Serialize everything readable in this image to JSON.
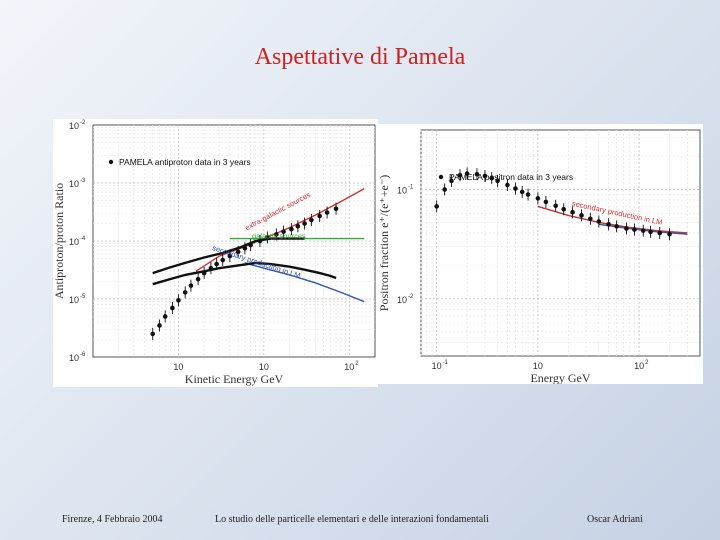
{
  "slide": {
    "title": "Aspettative di Pamela",
    "footer": {
      "left": "Firenze, 4 Febbraio 2004",
      "center": "Lo studio delle particelle elementari e delle interazioni fondamentali",
      "right": "Oscar Adriani"
    }
  },
  "colors": {
    "title": "#cc2222",
    "data": "#111111",
    "model_red": "#cc3333",
    "model_green": "#33aa33",
    "model_blue": "#3355aa"
  },
  "chart_data": [
    {
      "type": "scatter",
      "ylabel": "Antiproton/proton Ratio",
      "xlabel": "Kinetic Energy   GeV",
      "x_scale": "log",
      "y_scale": "log",
      "xlim": [
        0.1,
        200
      ],
      "ylim": [
        1e-06,
        0.01
      ],
      "x_ticks": [
        {
          "v": 1,
          "label": "10"
        },
        {
          "v": 10,
          "label": "10"
        },
        {
          "v": 100,
          "label": "10"
        }
      ],
      "x_tick_exps": [
        "",
        "",
        "2"
      ],
      "y_ticks": [
        {
          "v": 0.01,
          "label": "10",
          "exp": "-2"
        },
        {
          "v": 0.001,
          "label": "10",
          "exp": "-3"
        },
        {
          "v": 0.0001,
          "label": "10",
          "exp": "-4"
        },
        {
          "v": 1e-05,
          "label": "10",
          "exp": "-5"
        },
        {
          "v": 1e-06,
          "label": "10",
          "exp": "-6"
        }
      ],
      "legend": "PAMELA antiproton data in 3 years",
      "annotations": [
        {
          "text": "extra-galactic sources",
          "x": 15,
          "y": 0.0003,
          "color": "#cc3333",
          "rotate": -28
        },
        {
          "text": "galactic sources",
          "x": 15,
          "y": 0.00011,
          "color": "#33aa33",
          "rotate": 0
        },
        {
          "text": "secondary production in LM",
          "x": 8,
          "y": 4e-05,
          "color": "#3355aa",
          "rotate": 18
        }
      ],
      "models": [
        {
          "name": "extra-galactic sources",
          "color": "#cc3333",
          "x": [
            1.6,
            3,
            6,
            10,
            20,
            40,
            80,
            150
          ],
          "y": [
            3e-05,
            5.5e-05,
            8e-05,
            0.00011,
            0.00017,
            0.00028,
            0.00048,
            0.0008
          ]
        },
        {
          "name": "galactic sources",
          "color": "#33aa33",
          "x": [
            4,
            8,
            15,
            30,
            60,
            150
          ],
          "y": [
            0.00011,
            0.00011,
            0.00011,
            0.00011,
            0.00011,
            0.00011
          ]
        },
        {
          "name": "secondary production in LM",
          "color": "#3355aa",
          "x": [
            6,
            10,
            20,
            40,
            80,
            150
          ],
          "y": [
            4.2e-05,
            3.4e-05,
            2.6e-05,
            1.9e-05,
            1.3e-05,
            9e-06
          ]
        }
      ],
      "series": [
        {
          "name": "PAMELA antiproton data in 3 years",
          "kind": "scatter",
          "x": [
            0.5,
            0.6,
            0.7,
            0.85,
            1.0,
            1.2,
            1.4,
            1.7,
            2.0,
            2.4,
            2.8,
            3.3,
            4,
            5,
            6,
            7,
            9,
            11,
            14,
            17,
            21,
            25,
            30,
            36,
            45,
            55,
            70
          ],
          "y": [
            2.5e-06,
            3.5e-06,
            5e-06,
            7e-06,
            9.5e-06,
            1.3e-05,
            1.7e-05,
            2.2e-05,
            2.8e-05,
            3.4e-05,
            4e-05,
            4.7e-05,
            5.5e-05,
            6.5e-05,
            7.5e-05,
            8.5e-05,
            0.0001,
            0.000115,
            0.00013,
            0.000145,
            0.00016,
            0.00018,
            0.0002,
            0.00023,
            0.00027,
            0.00031,
            0.00036
          ]
        },
        {
          "name": "",
          "kind": "line",
          "x": [
            0.5,
            0.8,
            1.2,
            2,
            3,
            5,
            8,
            12,
            20,
            30
          ],
          "y": [
            2.8e-05,
            3.5e-05,
            4.2e-05,
            5.2e-05,
            6e-05,
            7.5e-05,
            0.0001,
            0.00011,
            0.00011,
            0.00011
          ]
        },
        {
          "name": "",
          "kind": "line",
          "x": [
            0.5,
            0.8,
            1.2,
            2,
            3,
            5,
            8,
            12,
            20,
            30,
            45,
            60,
            70
          ],
          "y": [
            1.8e-05,
            2.2e-05,
            2.6e-05,
            3e-05,
            3.4e-05,
            3.8e-05,
            4.2e-05,
            4e-05,
            3.6e-05,
            3.2e-05,
            2.8e-05,
            2.5e-05,
            2.3e-05
          ]
        }
      ]
    },
    {
      "type": "scatter",
      "ylabel": "Positron fraction  e⁺/(e⁺+e⁻)",
      "xlabel": "Energy   GeV",
      "x_scale": "log",
      "y_scale": "log",
      "xlim": [
        0.7,
        400
      ],
      "ylim": [
        0.003,
        0.35
      ],
      "x_ticks": [
        {
          "v": 1,
          "label": "10"
        },
        {
          "v": 10,
          "label": "10"
        },
        {
          "v": 100,
          "label": "10"
        }
      ],
      "x_tick_exps": [
        "-1",
        "",
        "2"
      ],
      "y_ticks": [
        {
          "v": 0.1,
          "label": "10",
          "exp": "-1"
        },
        {
          "v": 0.01,
          "label": "10",
          "exp": "-2"
        }
      ],
      "legend": "PAMELA positron data in 3 years",
      "annotations": [
        {
          "text": "secondary production in LM",
          "x": 60,
          "y": 0.058,
          "color": "#cc3333",
          "rotate": 12
        }
      ],
      "models": [
        {
          "name": "secondary production in LM",
          "color": "#cc3333",
          "x": [
            10,
            20,
            40,
            80,
            150,
            300
          ],
          "y": [
            0.07,
            0.058,
            0.05,
            0.045,
            0.042,
            0.04
          ]
        },
        {
          "name": "",
          "color": "#3355aa",
          "x": [
            40,
            80,
            150,
            300
          ],
          "y": [
            0.048,
            0.044,
            0.041,
            0.039
          ]
        }
      ],
      "series": [
        {
          "name": "PAMELA positron data in 3 years",
          "kind": "scatter",
          "x": [
            1.0,
            1.2,
            1.4,
            1.7,
            2,
            2.5,
            3,
            3.5,
            4,
            5,
            6,
            7,
            8,
            10,
            12,
            15,
            18,
            22,
            27,
            33,
            40,
            50,
            60,
            75,
            90,
            110,
            130,
            160,
            200
          ],
          "y": [
            0.07,
            0.1,
            0.12,
            0.135,
            0.14,
            0.138,
            0.133,
            0.127,
            0.12,
            0.11,
            0.102,
            0.095,
            0.09,
            0.083,
            0.077,
            0.071,
            0.066,
            0.062,
            0.058,
            0.054,
            0.051,
            0.048,
            0.046,
            0.044,
            0.043,
            0.042,
            0.041,
            0.04,
            0.039
          ]
        }
      ]
    }
  ]
}
